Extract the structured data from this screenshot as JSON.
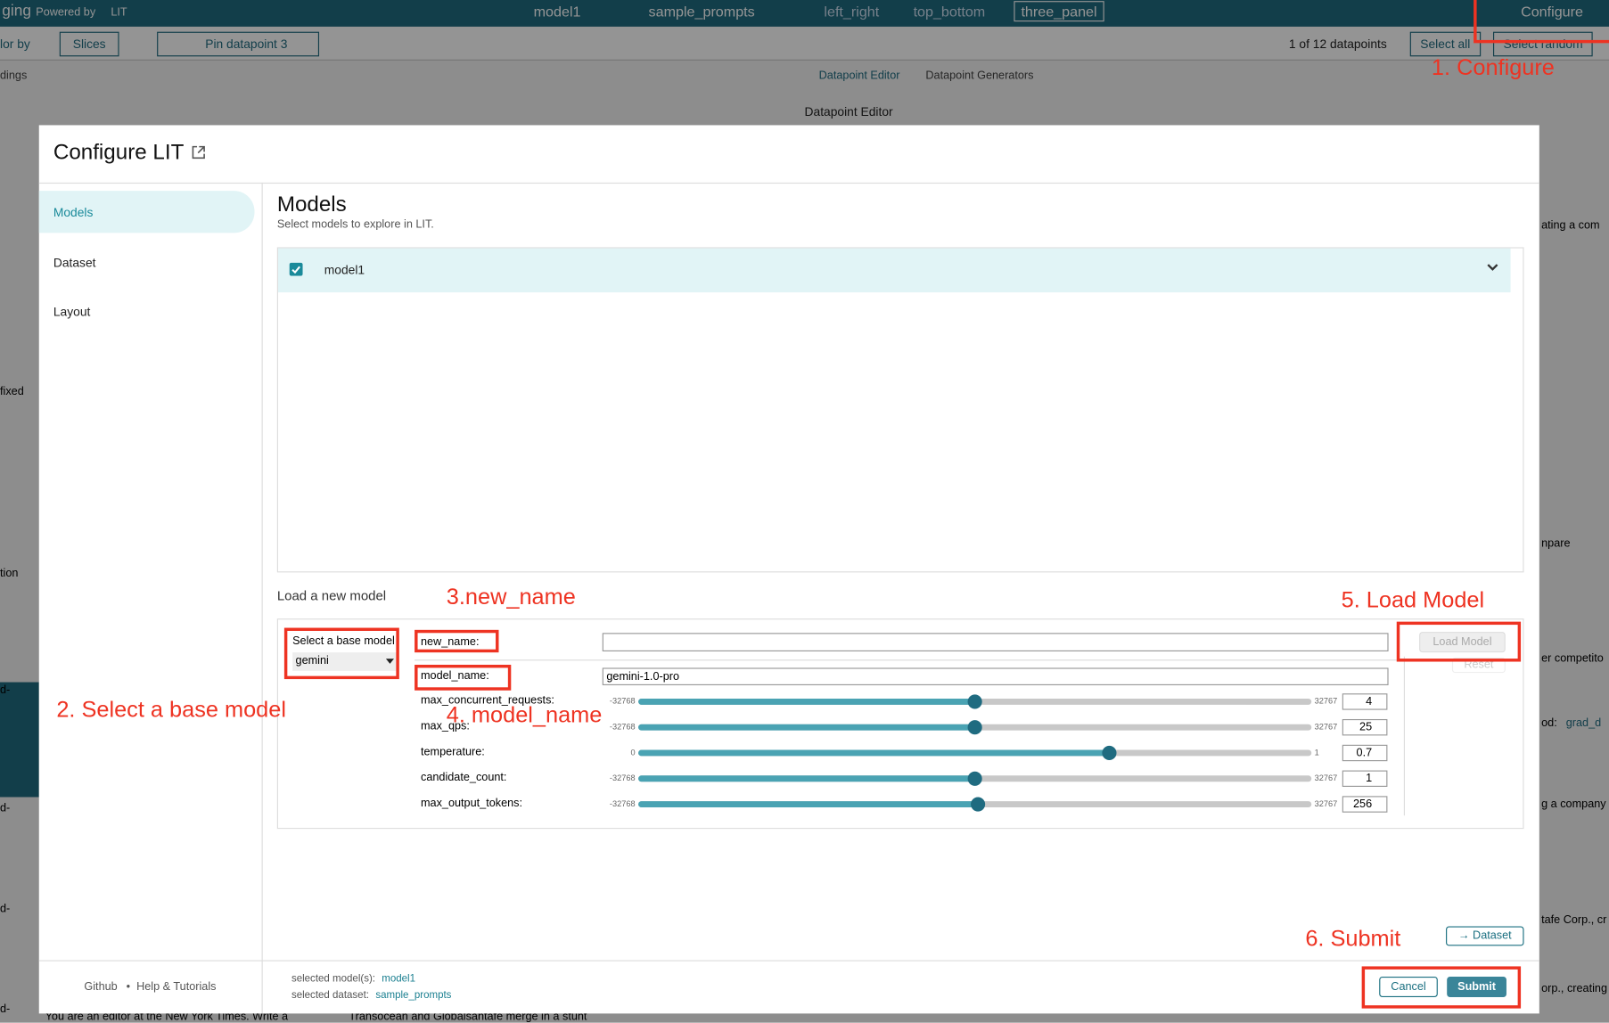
{
  "top_bar": {
    "app_name": "ging",
    "powered_by": "Powered by",
    "lit": "LIT",
    "model": "model1",
    "dataset": "sample_prompts",
    "layouts": [
      "left_right",
      "top_bottom",
      "three_panel"
    ],
    "configure": "Configure"
  },
  "toolbar": {
    "color_by": "lor by",
    "slices": "Slices",
    "pin": "Pin datapoint 3",
    "nav": "1 of 12 datapoints",
    "select_all": "Select all",
    "select_random": "Select random"
  },
  "background": {
    "left_tab": "dings",
    "tabs": [
      "Datapoint Editor",
      "Datapoint Generators"
    ],
    "panel_title": "Datapoint Editor",
    "left_fragments": [
      "fixed",
      "tion",
      "d-",
      "d-",
      "d-",
      "d-"
    ],
    "right_fragments": [
      "ating a com",
      "npare",
      "er competito",
      "od:",
      "grad_d",
      "g a company",
      "tafe Corp., cr",
      "orp., creating"
    ],
    "bottom_fragments": [
      "You are an editor at the New York Times. Write a",
      "Transocean and Globalsantafe merge in a stunt"
    ]
  },
  "dialog": {
    "title": "Configure LIT",
    "sidebar": [
      "Models",
      "Dataset",
      "Layout"
    ],
    "section_title": "Models",
    "section_subtitle": "Select models to explore in LIT.",
    "models": [
      "model1"
    ],
    "load_title": "Load a new model",
    "base_model_label": "Select a base model",
    "base_model_value": "gemini",
    "fields": [
      {
        "label": "new_name:",
        "value": ""
      },
      {
        "label": "model_name:",
        "value": "gemini-1.0-pro"
      }
    ],
    "sliders": [
      {
        "label": "max_concurrent_requests:",
        "min": -32768,
        "max": 32767,
        "value": 4
      },
      {
        "label": "max_qps:",
        "min": -32768,
        "max": 32767,
        "value": 25
      },
      {
        "label": "temperature:",
        "min": 0,
        "max": 1,
        "value": 0.7
      },
      {
        "label": "candidate_count:",
        "min": -32768,
        "max": 32767,
        "value": 1
      },
      {
        "label": "max_output_tokens:",
        "min": -32768,
        "max": 32767,
        "value": 256
      }
    ],
    "load_button": "Load Model",
    "reset_button": "Reset",
    "dataset_button": "→ Dataset",
    "footer_links": [
      "Github",
      "•",
      "Help & Tutorials"
    ],
    "selected_models_label": "selected model(s):",
    "selected_models": "model1",
    "selected_dataset_label": "selected dataset:",
    "selected_dataset": "sample_prompts",
    "cancel": "Cancel",
    "submit": "Submit"
  },
  "annotations": [
    "1. Configure",
    "2. Select a base model",
    "3.new_name",
    "4. model_name",
    "5. Load Model",
    "6. Submit"
  ]
}
